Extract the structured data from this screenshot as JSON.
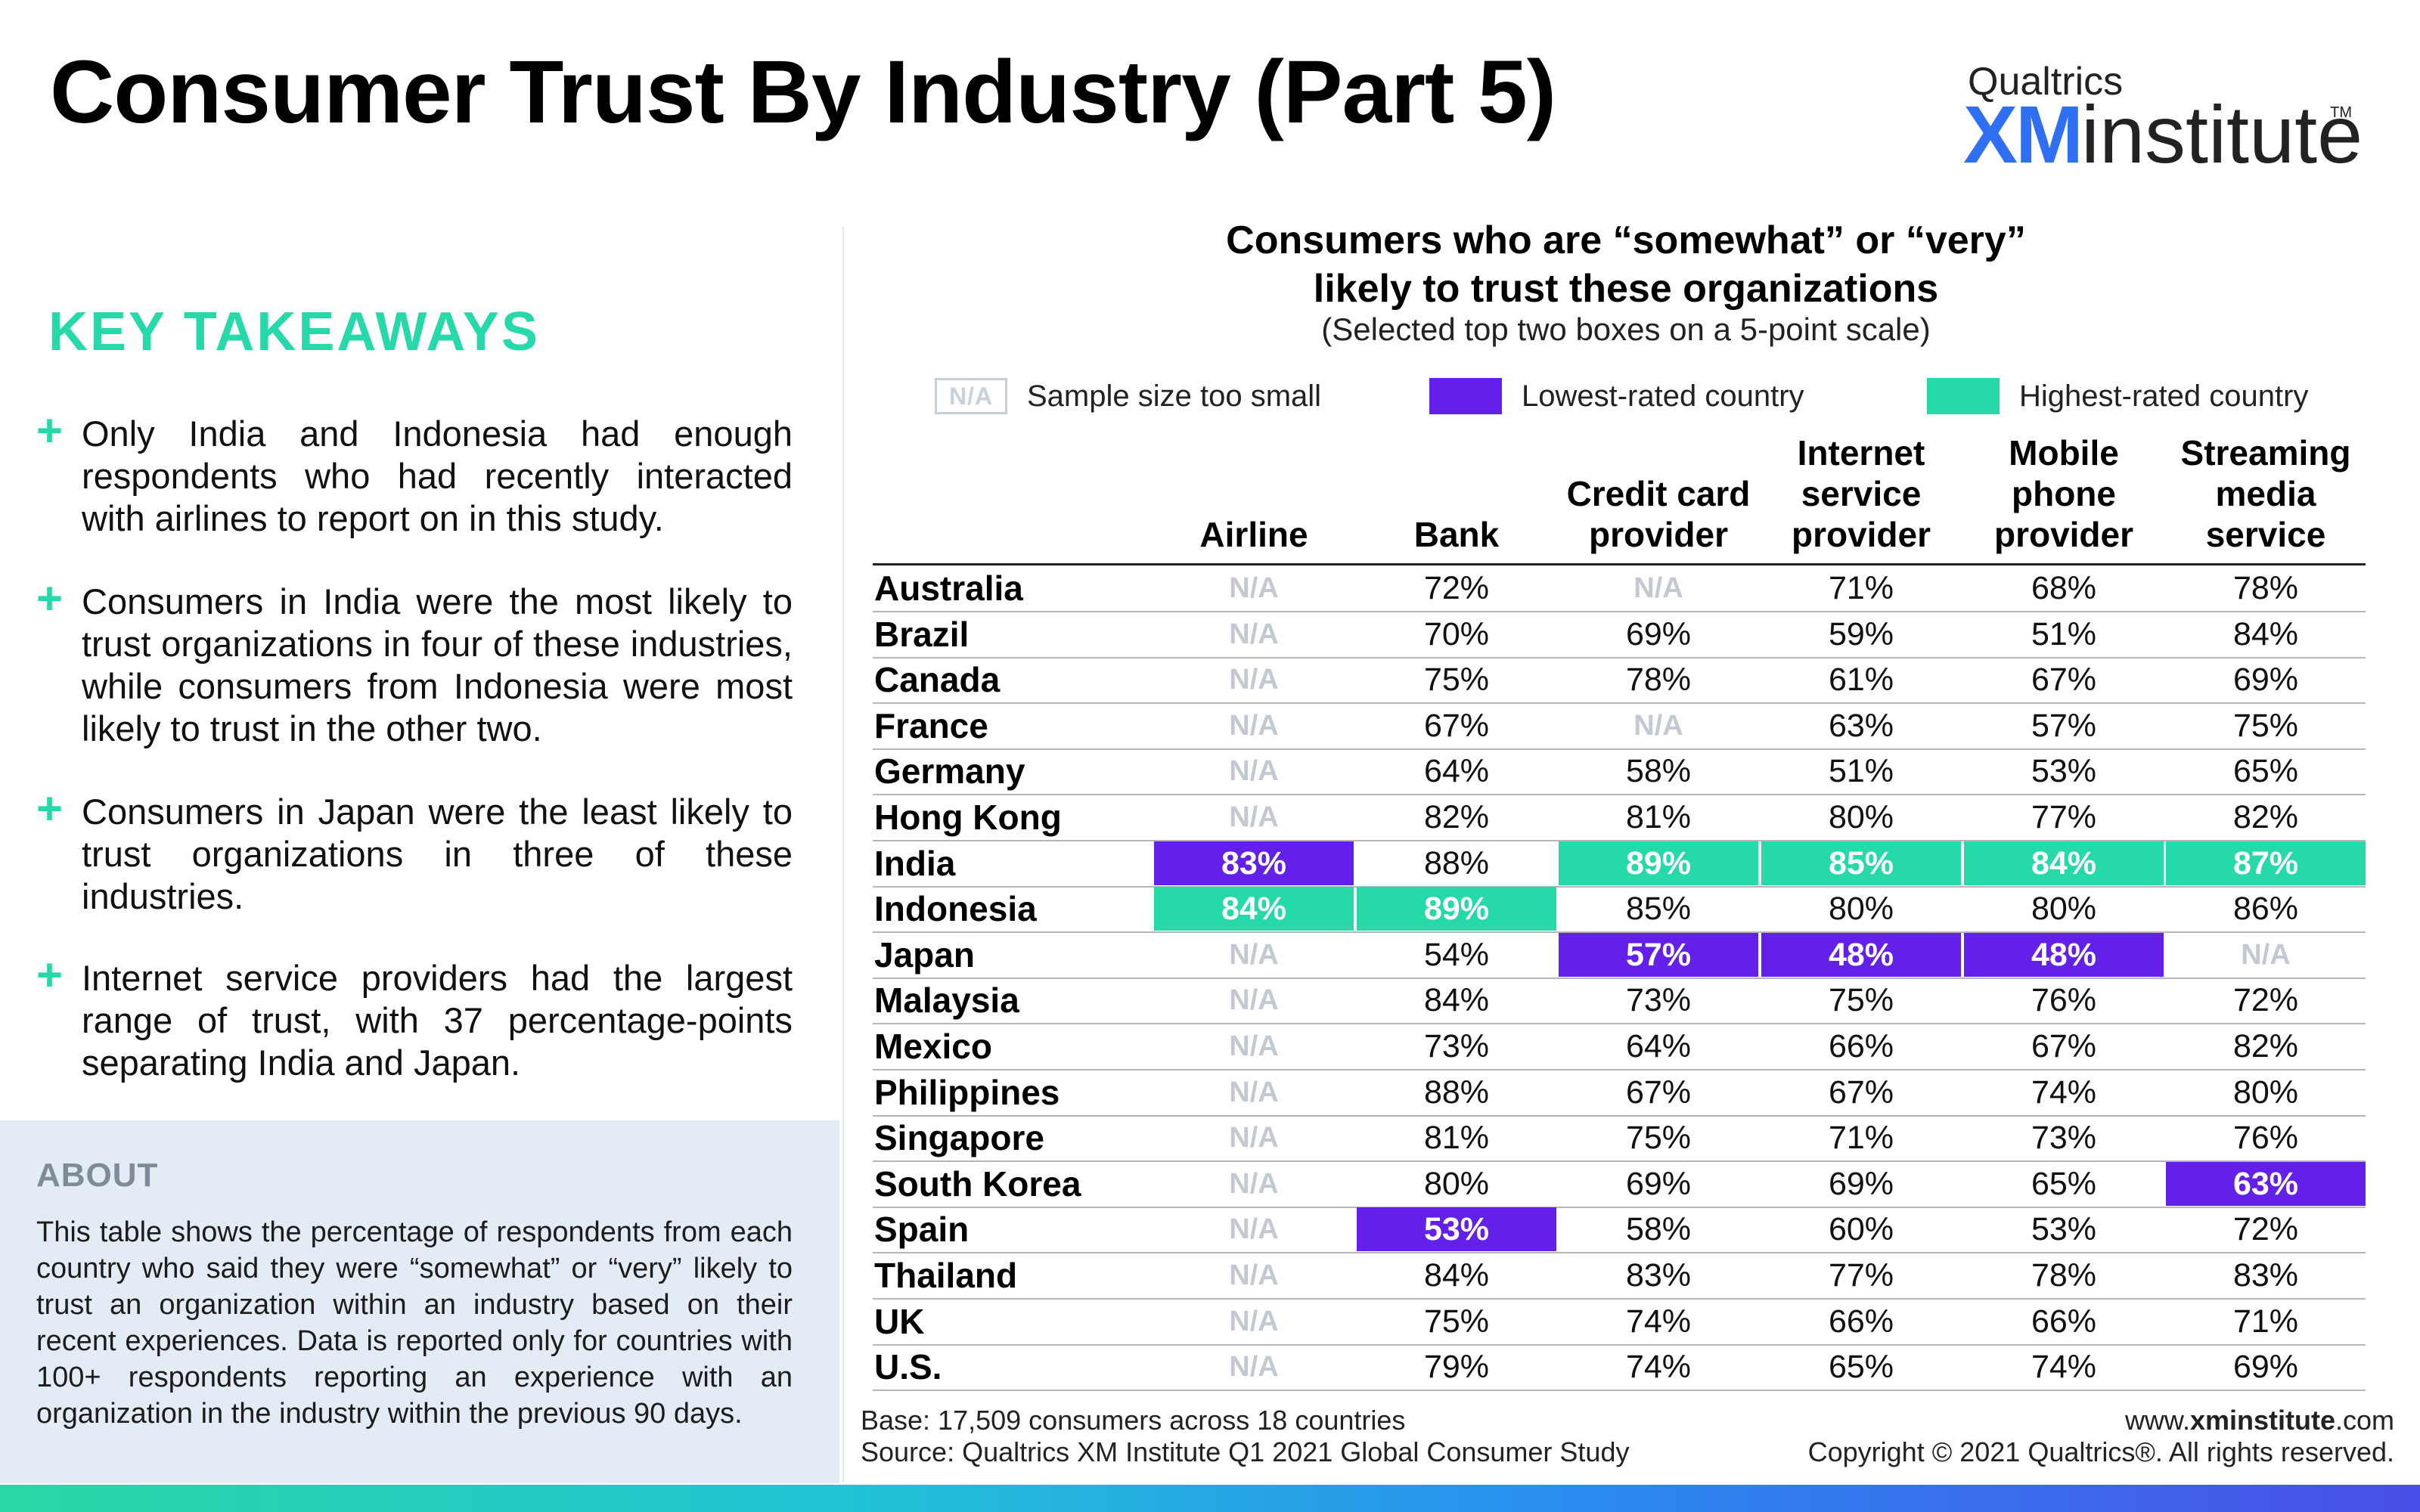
{
  "page": {
    "title": "Consumer Trust By Industry (Part 5)",
    "logo": {
      "brand": "Qualtrics",
      "xm": "XM",
      "institute": "institute",
      "tm": "TM"
    }
  },
  "takeaways": {
    "heading": "KEY TAKEAWAYS",
    "bullet_symbol": "+",
    "items": [
      "Only India and Indonesia had enough respondents who had recently interacted with airlines to report on in this study.",
      "Consumers in India were the most likely to trust organizations in four of these industries, while consumers from Indonesia were most likely to trust in the other two.",
      "Consumers in Japan were the least likely to trust organizations in three of these industries.",
      "Internet service providers had the largest range of trust, with 37 percentage-points separating India and Japan."
    ]
  },
  "about": {
    "heading": "ABOUT",
    "text": "This table shows the percentage of respondents from each country who said they were “somewhat” or “very” likely to trust an organization within an industry based on their recent experiences. Data is reported only for countries with 100+ respondents reporting an experience with an organization in the industry within the previous 90 days."
  },
  "chart_data": {
    "type": "table",
    "title_line1": "Consumers who are “somewhat” or “very”",
    "title_line2": "likely to trust these organizations",
    "subtitle": "(Selected top two boxes on a 5-point scale)",
    "legend": [
      {
        "key": "na",
        "swatch_text": "N/A",
        "label": "Sample size too small"
      },
      {
        "key": "low",
        "label": "Lowest-rated country",
        "color": "#6220e8"
      },
      {
        "key": "high",
        "label": "Highest-rated country",
        "color": "#26d9a9"
      }
    ],
    "columns": [
      [
        "Airline"
      ],
      [
        "Bank"
      ],
      [
        "Credit card",
        "provider"
      ],
      [
        "Internet",
        "service",
        "provider"
      ],
      [
        "Mobile",
        "phone",
        "provider"
      ],
      [
        "Streaming",
        "media",
        "service"
      ]
    ],
    "rows": [
      {
        "country": "Australia",
        "values": [
          "N/A",
          "72%",
          "N/A",
          "71%",
          "68%",
          "78%"
        ],
        "high": [],
        "low": []
      },
      {
        "country": "Brazil",
        "values": [
          "N/A",
          "70%",
          "69%",
          "59%",
          "51%",
          "84%"
        ],
        "high": [],
        "low": []
      },
      {
        "country": "Canada",
        "values": [
          "N/A",
          "75%",
          "78%",
          "61%",
          "67%",
          "69%"
        ],
        "high": [],
        "low": []
      },
      {
        "country": "France",
        "values": [
          "N/A",
          "67%",
          "N/A",
          "63%",
          "57%",
          "75%"
        ],
        "high": [],
        "low": []
      },
      {
        "country": "Germany",
        "values": [
          "N/A",
          "64%",
          "58%",
          "51%",
          "53%",
          "65%"
        ],
        "high": [],
        "low": []
      },
      {
        "country": "Hong Kong",
        "values": [
          "N/A",
          "82%",
          "81%",
          "80%",
          "77%",
          "82%"
        ],
        "high": [],
        "low": []
      },
      {
        "country": "India",
        "values": [
          "83%",
          "88%",
          "89%",
          "85%",
          "84%",
          "87%"
        ],
        "high": [
          2,
          3,
          4,
          5
        ],
        "low": [
          0
        ]
      },
      {
        "country": "Indonesia",
        "values": [
          "84%",
          "89%",
          "85%",
          "80%",
          "80%",
          "86%"
        ],
        "high": [
          0,
          1
        ],
        "low": []
      },
      {
        "country": "Japan",
        "values": [
          "N/A",
          "54%",
          "57%",
          "48%",
          "48%",
          "N/A"
        ],
        "high": [],
        "low": [
          2,
          3,
          4
        ]
      },
      {
        "country": "Malaysia",
        "values": [
          "N/A",
          "84%",
          "73%",
          "75%",
          "76%",
          "72%"
        ],
        "high": [],
        "low": []
      },
      {
        "country": "Mexico",
        "values": [
          "N/A",
          "73%",
          "64%",
          "66%",
          "67%",
          "82%"
        ],
        "high": [],
        "low": []
      },
      {
        "country": "Philippines",
        "values": [
          "N/A",
          "88%",
          "67%",
          "67%",
          "74%",
          "80%"
        ],
        "high": [],
        "low": []
      },
      {
        "country": "Singapore",
        "values": [
          "N/A",
          "81%",
          "75%",
          "71%",
          "73%",
          "76%"
        ],
        "high": [],
        "low": []
      },
      {
        "country": "South Korea",
        "values": [
          "N/A",
          "80%",
          "69%",
          "69%",
          "65%",
          "63%"
        ],
        "high": [],
        "low": [
          5
        ]
      },
      {
        "country": "Spain",
        "values": [
          "N/A",
          "53%",
          "58%",
          "60%",
          "53%",
          "72%"
        ],
        "high": [],
        "low": [
          1
        ]
      },
      {
        "country": "Thailand",
        "values": [
          "N/A",
          "84%",
          "83%",
          "77%",
          "78%",
          "83%"
        ],
        "high": [],
        "low": []
      },
      {
        "country": "UK",
        "values": [
          "N/A",
          "75%",
          "74%",
          "66%",
          "66%",
          "71%"
        ],
        "high": [],
        "low": []
      },
      {
        "country": "U.S.",
        "values": [
          "N/A",
          "79%",
          "74%",
          "65%",
          "74%",
          "69%"
        ],
        "high": [],
        "low": []
      }
    ]
  },
  "footer": {
    "base": "Base: 17,509 consumers across 18 countries",
    "source": "Source: Qualtrics XM Institute Q1 2021 Global Consumer Study",
    "url_prefix": "www.",
    "url_bold": "xminstitute",
    "url_suffix": ".com",
    "copyright": "Copyright © 2021 Qualtrics®. All rights reserved."
  },
  "colors": {
    "accent_green": "#27d8ab",
    "highest": "#26d9a9",
    "lowest": "#6220e8",
    "brand_blue": "#2f6ff3",
    "na_gray": "#c2c9d2",
    "about_bg": "#e3ebf4"
  }
}
